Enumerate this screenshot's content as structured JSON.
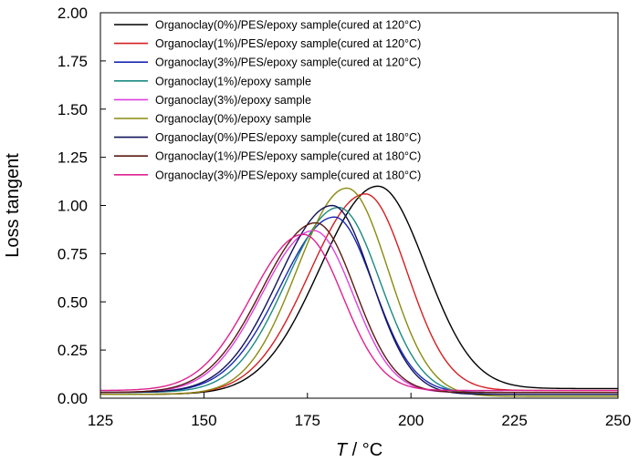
{
  "chart_data": {
    "type": "line",
    "title": "",
    "xlabel_italic": "T",
    "xlabel_rest": " / °C",
    "ylabel": "Loss tangent",
    "xlim": [
      125,
      250
    ],
    "ylim": [
      0,
      2
    ],
    "xticks": [
      125,
      150,
      175,
      200,
      225,
      250
    ],
    "yticks": [
      0.0,
      0.25,
      0.5,
      0.75,
      1.0,
      1.25,
      1.5,
      1.75,
      2.0
    ],
    "xtick_labels": [
      "125",
      "150",
      "175",
      "200",
      "225",
      "250"
    ],
    "ytick_labels": [
      "0.00",
      "0.25",
      "0.50",
      "0.75",
      "1.00",
      "1.25",
      "1.50",
      "1.75",
      "2.00"
    ],
    "grid": false,
    "legend_position": "top-left",
    "series": [
      {
        "name": "Organoclay(0%)/PES/epoxy sample(cured at 120°C)",
        "color": "#000000",
        "peak_x": 192,
        "peak_y": 1.1,
        "left_width": 14,
        "right_width": 11.5,
        "baseline_left": 0.02,
        "baseline_right": 0.05
      },
      {
        "name": "Organoclay(1%)/PES/epoxy sample(cured at 120°C)",
        "color": "#d42020",
        "peak_x": 189,
        "peak_y": 1.06,
        "left_width": 13.5,
        "right_width": 10,
        "baseline_left": 0.02,
        "baseline_right": 0.04
      },
      {
        "name": "Organoclay(3%)/PES/epoxy sample(cured at 120°C)",
        "color": "#1a28b4",
        "peak_x": 181.5,
        "peak_y": 0.94,
        "left_width": 13,
        "right_width": 9.5,
        "baseline_left": 0.03,
        "baseline_right": 0.03
      },
      {
        "name": "Organoclay(1%)/epoxy sample",
        "color": "#1a8a80",
        "peak_x": 182.5,
        "peak_y": 0.99,
        "left_width": 12.5,
        "right_width": 10,
        "baseline_left": 0.03,
        "baseline_right": 0.02
      },
      {
        "name": "Organoclay(3%)/epoxy sample",
        "color": "#e040e0",
        "peak_x": 176.5,
        "peak_y": 0.87,
        "left_width": 12.5,
        "right_width": 9.5,
        "baseline_left": 0.03,
        "baseline_right": 0.03
      },
      {
        "name": "Organoclay(0%)/epoxy sample",
        "color": "#8a8a10",
        "peak_x": 184.5,
        "peak_y": 1.09,
        "left_width": 12,
        "right_width": 10,
        "baseline_left": 0.02,
        "baseline_right": 0.01
      },
      {
        "name": "Organoclay(0%)/PES/epoxy sample(cured at 180°C)",
        "color": "#12125a",
        "peak_x": 181,
        "peak_y": 1.0,
        "left_width": 13,
        "right_width": 9.5,
        "baseline_left": 0.03,
        "baseline_right": 0.02
      },
      {
        "name": "Organoclay(1%)/PES/epoxy sample(cured at 180°C)",
        "color": "#5a1a10",
        "peak_x": 177,
        "peak_y": 0.91,
        "left_width": 13,
        "right_width": 9.5,
        "baseline_left": 0.03,
        "baseline_right": 0.03
      },
      {
        "name": "Organoclay(3%)/PES/epoxy sample(cured at 180°C)",
        "color": "#e02090",
        "peak_x": 174,
        "peak_y": 0.85,
        "left_width": 12.5,
        "right_width": 9.5,
        "baseline_left": 0.04,
        "baseline_right": 0.04
      }
    ]
  }
}
